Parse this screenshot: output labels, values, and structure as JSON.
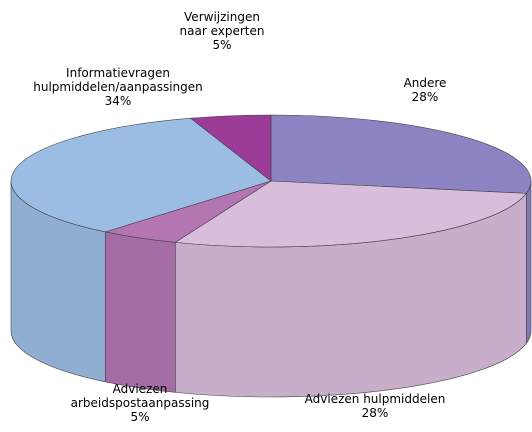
{
  "chart_data": {
    "type": "pie",
    "categories": [
      "Andere",
      "Adviezen hulpmiddelen",
      "Adviezen\narbeidspostaanpassing",
      "Informatievragen\nhulpmiddelen/aanpassingen",
      "Verwijzingen\nnaar experten"
    ],
    "values": [
      28,
      28,
      5,
      34,
      5
    ],
    "value_labels": [
      "28%",
      "28%",
      "5%",
      "34%",
      "5%"
    ],
    "colors": [
      "#8b83c2",
      "#d9bddd",
      "#b475b3",
      "#9cbde3",
      "#9b3c99"
    ]
  }
}
